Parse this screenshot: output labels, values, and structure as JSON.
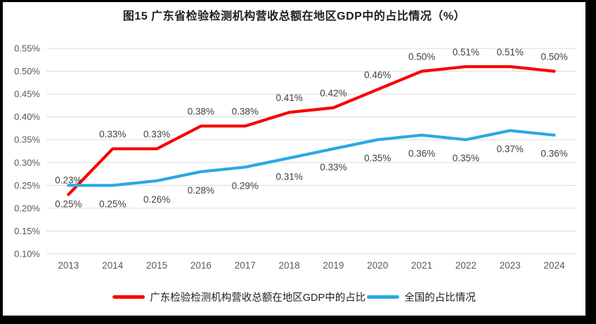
{
  "figure": {
    "frame_color": "#000000",
    "background": "#FFFFFF"
  },
  "chart_data": {
    "type": "line",
    "title": "图15  广东省检验检测机构营收总额在地区GDP中的占比情况（%）",
    "categories": [
      "2013",
      "2014",
      "2015",
      "2016",
      "2017",
      "2018",
      "2019",
      "2020",
      "2021",
      "2022",
      "2023",
      "2024"
    ],
    "ylim": [
      0.1,
      0.55
    ],
    "grid": "horizontal",
    "legend_position": "bottom",
    "gridline_color": "#DBDBDB",
    "axis_text_color": "#595959",
    "data_label_color": "#404040",
    "y_ticks": [
      {
        "value": 0.55,
        "label": "0.55%"
      },
      {
        "value": 0.5,
        "label": "0.50%"
      },
      {
        "value": 0.45,
        "label": "0.45%"
      },
      {
        "value": 0.4,
        "label": "0.40%"
      },
      {
        "value": 0.35,
        "label": "0.35%"
      },
      {
        "value": 0.3,
        "label": "0.30%"
      },
      {
        "value": 0.25,
        "label": "0.25%"
      },
      {
        "value": 0.2,
        "label": "0.20%"
      },
      {
        "value": 0.15,
        "label": "0.15%"
      },
      {
        "value": 0.1,
        "label": "0.10%"
      }
    ],
    "series": [
      {
        "name": "广东检验检测机构营收总额在地区GDP中的占比",
        "color": "#F80000",
        "label_position": "above",
        "values": [
          0.23,
          0.33,
          0.33,
          0.38,
          0.38,
          0.41,
          0.42,
          0.46,
          0.5,
          0.51,
          0.51,
          0.5
        ],
        "point_labels": [
          "0.23%",
          "0.33%",
          "0.33%",
          "0.38%",
          "0.38%",
          "0.41%",
          "0.42%",
          "0.46%",
          "0.50%",
          "0.51%",
          "0.51%",
          "0.50%"
        ]
      },
      {
        "name": "全国的占比情况",
        "color": "#29A9E1",
        "label_position": "below",
        "values": [
          0.25,
          0.25,
          0.26,
          0.28,
          0.29,
          0.31,
          0.33,
          0.35,
          0.36,
          0.35,
          0.37,
          0.36
        ],
        "point_labels": [
          "0.25%",
          "0.25%",
          "0.26%",
          "0.28%",
          "0.29%",
          "0.31%",
          "0.33%",
          "0.35%",
          "0.36%",
          "0.35%",
          "0.37%",
          "0.36%"
        ]
      }
    ]
  }
}
